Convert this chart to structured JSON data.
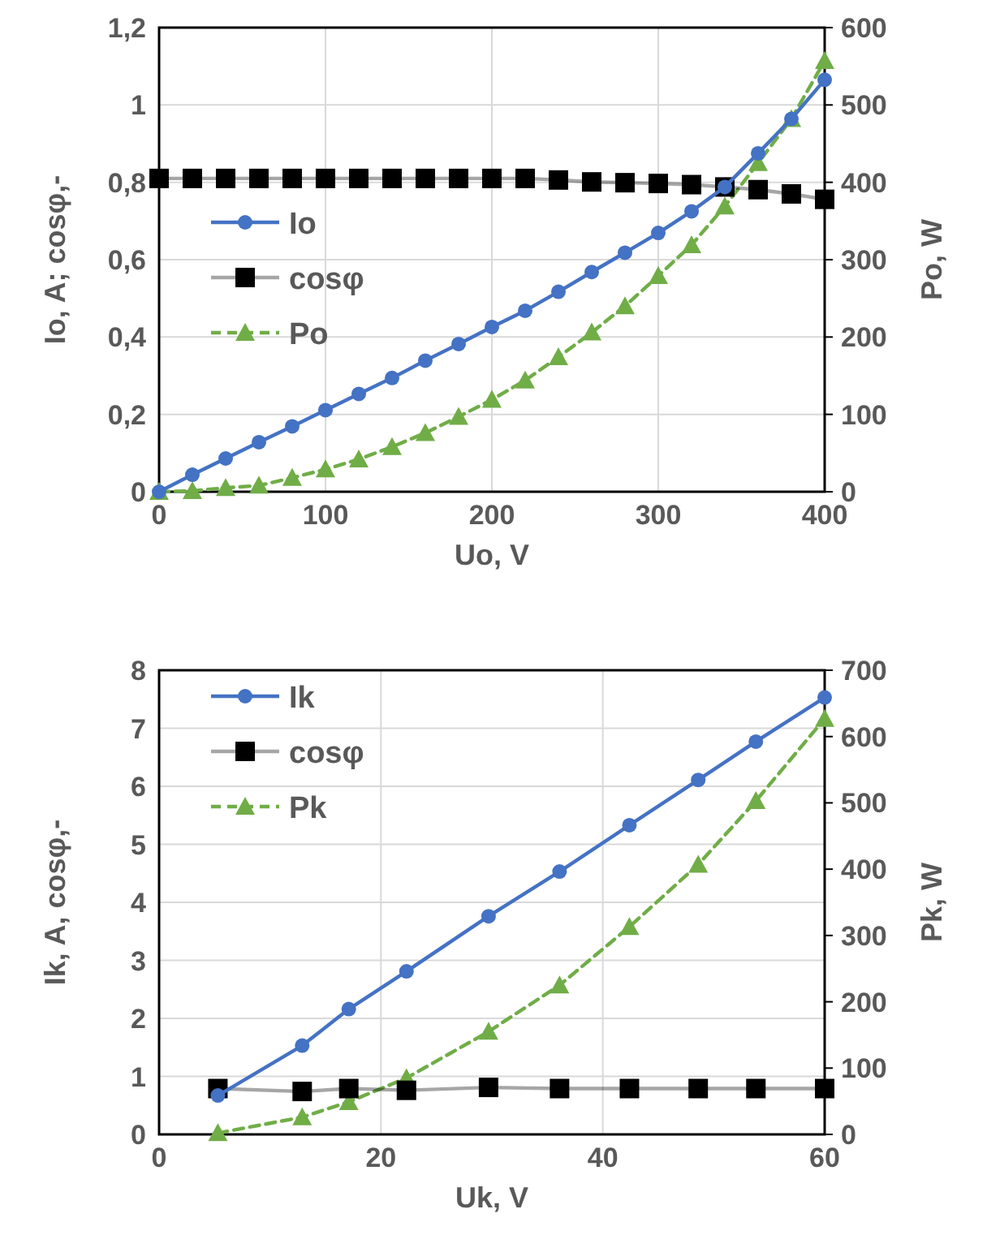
{
  "chart_data": [
    {
      "type": "line",
      "xlabel": "Uo, V",
      "ylabel": "Io, A; cosφ,-",
      "y2label": "Po, W",
      "x": [
        0,
        20,
        40,
        60,
        80,
        100,
        120,
        140,
        160,
        180,
        200,
        220,
        240,
        260,
        280,
        300,
        320,
        340,
        360,
        380,
        400
      ],
      "xlim": [
        0,
        400
      ],
      "xticks": [
        0,
        100,
        200,
        300,
        400
      ],
      "ylim": [
        0,
        1.2
      ],
      "yticks": [
        0,
        {
          "value": 0.2,
          "label": "0,2"
        },
        {
          "value": 0.4,
          "label": "0,4"
        },
        {
          "value": 0.6,
          "label": "0,6"
        },
        {
          "value": 0.8,
          "label": "0,8"
        },
        1,
        {
          "value": 1.2,
          "label": "1,2"
        }
      ],
      "y2lim": [
        0,
        600
      ],
      "y2ticks": [
        0,
        100,
        200,
        300,
        400,
        500,
        600
      ],
      "grid": true,
      "legend": "left",
      "series": [
        {
          "name": "Io",
          "color": "#4472c4",
          "marker": "circle",
          "line_style": "solid",
          "values": [
            0,
            0.044,
            0.086,
            0.128,
            0.169,
            0.211,
            0.253,
            0.294,
            0.339,
            0.382,
            0.426,
            0.468,
            0.517,
            0.568,
            0.618,
            0.669,
            0.725,
            0.788,
            0.875,
            0.964,
            1.065
          ]
        },
        {
          "name": "cosφ",
          "color": "#000000",
          "marker": "square",
          "line_style": "solid",
          "values": [
            0.81,
            0.81,
            0.81,
            0.81,
            0.81,
            0.81,
            0.81,
            0.81,
            0.81,
            0.81,
            0.81,
            0.81,
            0.806,
            0.801,
            0.799,
            0.797,
            0.794,
            0.788,
            0.781,
            0.77,
            0.756
          ]
        },
        {
          "name": "Po",
          "color": "#70ad47",
          "marker": "triangle",
          "line_style": "dashed",
          "axis": "y2",
          "values": [
            0,
            1,
            5,
            8,
            18,
            29,
            42,
            58,
            76,
            97,
            119,
            144,
            174,
            206,
            240,
            279,
            319,
            369,
            425,
            482,
            557
          ]
        }
      ]
    },
    {
      "type": "line",
      "xlabel": "Uk, V",
      "ylabel": "Ik, A, cosφ,-",
      "y2label": "Pk, W",
      "x": [
        5.3,
        12.9,
        17.1,
        22.3,
        29.7,
        36.1,
        42.4,
        48.6,
        53.8,
        60
      ],
      "xlim": [
        0,
        60
      ],
      "xticks": [
        0,
        20,
        40,
        60
      ],
      "ylim": [
        0,
        8
      ],
      "yticks": [
        0,
        1,
        2,
        3,
        4,
        5,
        6,
        7,
        8
      ],
      "y2lim": [
        0,
        700
      ],
      "y2ticks": [
        0,
        100,
        200,
        300,
        400,
        500,
        600,
        700
      ],
      "grid": true,
      "legend": "top left",
      "series": [
        {
          "name": "Ik",
          "color": "#4472c4",
          "marker": "circle",
          "line_style": "solid",
          "values": [
            0.67,
            1.53,
            2.16,
            2.81,
            3.76,
            4.53,
            5.33,
            6.11,
            6.77,
            7.53
          ]
        },
        {
          "name": "cosφ",
          "color": "#000000",
          "marker": "square",
          "line_style": "solid",
          "values": [
            0.79,
            0.74,
            0.79,
            0.76,
            0.81,
            0.79,
            0.79,
            0.79,
            0.79,
            0.79
          ]
        },
        {
          "name": "Pk",
          "color": "#70ad47",
          "marker": "triangle",
          "line_style": "dashed",
          "axis": "y2",
          "values": [
            2,
            26,
            49,
            85,
            155,
            225,
            313,
            407,
            503,
            627
          ]
        }
      ]
    }
  ]
}
